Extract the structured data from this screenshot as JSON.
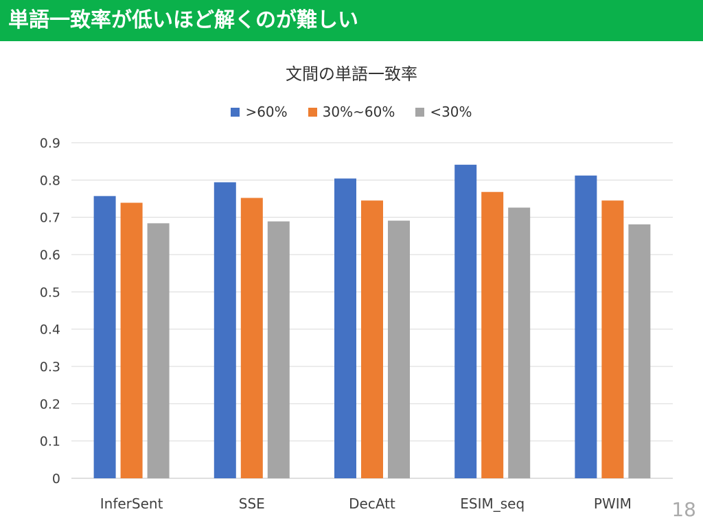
{
  "slide": {
    "title": "単語一致率が低いほど解くのが難しい",
    "page_number": "18",
    "banner_color": "#0BB14B"
  },
  "chart_data": {
    "type": "bar",
    "title": "文間の単語一致率",
    "xlabel": "",
    "ylabel": "",
    "categories": [
      "InferSent",
      "SSE",
      "DecAtt",
      "ESIM_seq",
      "PWIM"
    ],
    "series": [
      {
        "name": ">60%",
        "color": "#4472C4",
        "values": [
          0.757,
          0.794,
          0.804,
          0.841,
          0.812
        ]
      },
      {
        "name": "30%~60%",
        "color": "#ED7D31",
        "values": [
          0.739,
          0.752,
          0.745,
          0.768,
          0.745
        ]
      },
      {
        "name": "<30%",
        "color": "#A5A5A5",
        "values": [
          0.684,
          0.689,
          0.691,
          0.726,
          0.681
        ]
      }
    ],
    "ylim": [
      0,
      0.9
    ],
    "yticks": [
      "0",
      "0.1",
      "0.2",
      "0.3",
      "0.4",
      "0.5",
      "0.6",
      "0.7",
      "0.8",
      "0.9"
    ],
    "grid": true,
    "legend_position": "top-center"
  }
}
